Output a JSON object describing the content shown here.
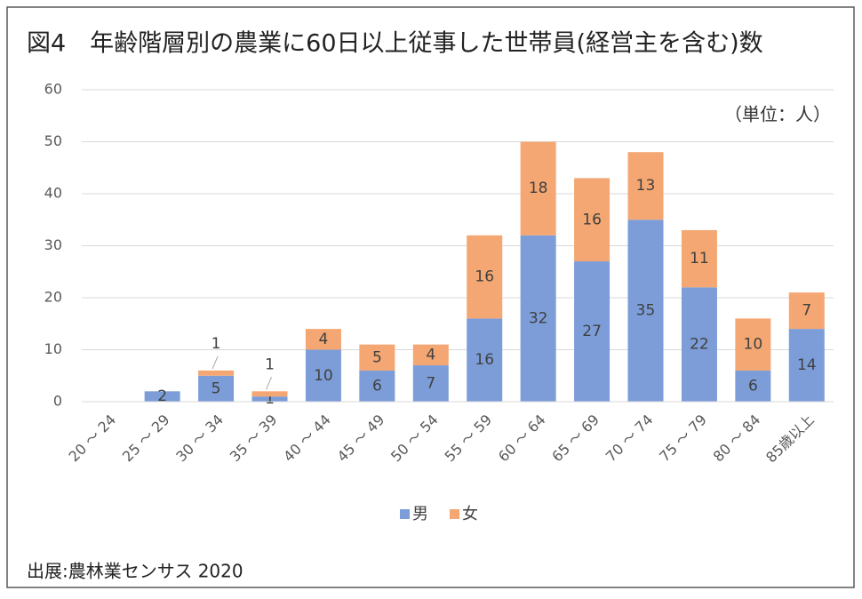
{
  "chart_data": {
    "type": "stacked_bar",
    "title": "図4　年齢階層別の農業に60日以上従事した世帯員(経営主を含む)数",
    "annotation": "（単位：人）",
    "source": "出展:農林業センサス 2020",
    "categories": [
      "20 ～ 24",
      "25 ～ 29",
      "30 ～ 34",
      "35 ～ 39",
      "40 ～ 44",
      "45 ～ 49",
      "50 ～ 54",
      "55 ～ 59",
      "60 ～ 64",
      "65 ～ 69",
      "70 ～ 74",
      "75 ～ 79",
      "80 ～ 84",
      "85歳以上"
    ],
    "series": [
      {
        "name": "男",
        "color": "#7c9dd8",
        "values": [
          0,
          2,
          5,
          1,
          10,
          6,
          7,
          16,
          32,
          27,
          35,
          22,
          6,
          14
        ]
      },
      {
        "name": "女",
        "color": "#f4a772",
        "values": [
          0,
          0,
          1,
          1,
          4,
          5,
          4,
          16,
          18,
          16,
          13,
          11,
          10,
          7
        ]
      }
    ],
    "ylim": [
      0,
      60
    ],
    "yticks": [
      0,
      10,
      20,
      30,
      40,
      50,
      60
    ],
    "grid": true,
    "legend": "bottom"
  }
}
